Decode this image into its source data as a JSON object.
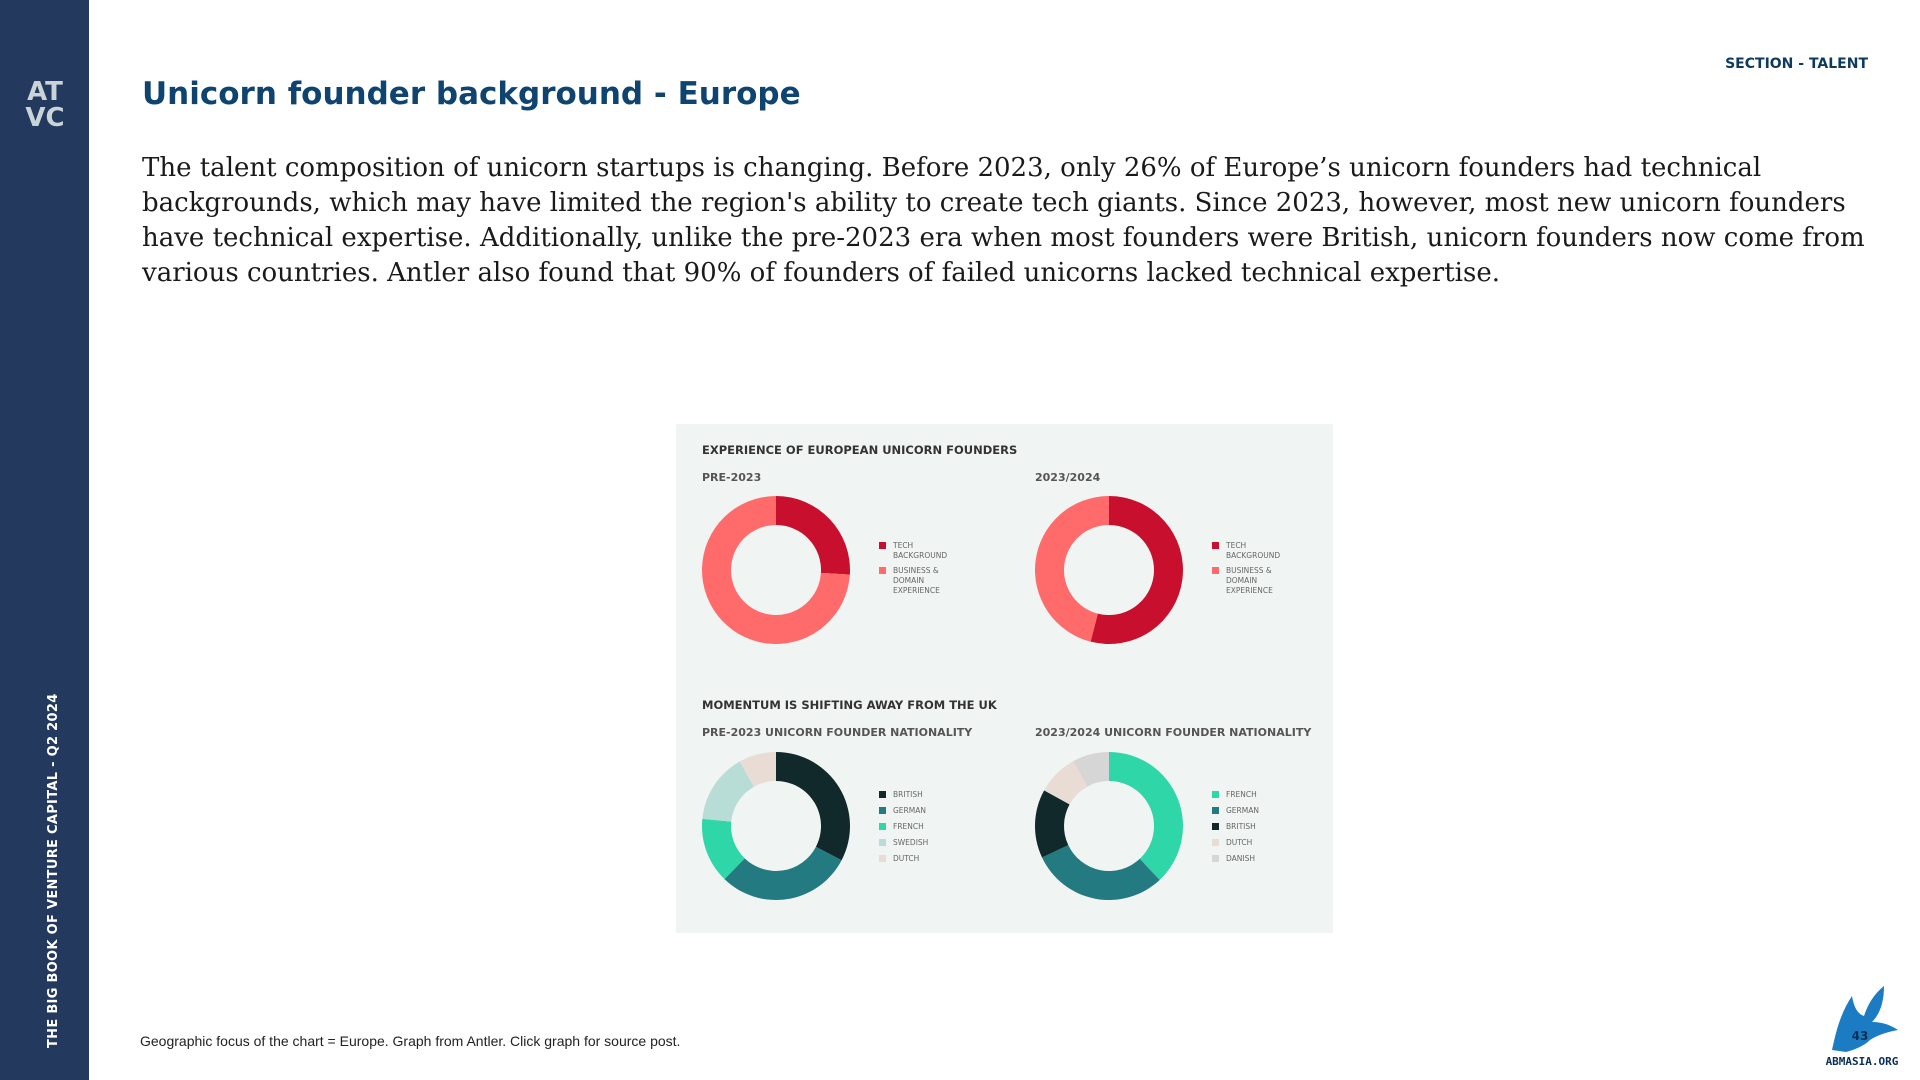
{
  "sidebar": {
    "logo_text": "ATVC",
    "vertical_title": "THE BIG BOOK OF VENTURE CAPITAL - Q2 2024"
  },
  "header": {
    "section": "SECTION - TALENT",
    "title": "Unicorn founder background - Europe"
  },
  "intro": "The talent composition of unicorn startups is changing. Before 2023, only 26% of Europe’s unicorn founders had technical backgrounds, which may have limited the region's ability to create tech giants. Since 2023, however, most new unicorn founders have technical expertise. Additionally, unlike the pre-2023 era when most founders were British, unicorn founders now come from various countries. Antler also found that 90% of founders of failed unicorns lacked technical expertise.",
  "footnote": "Geographic focus of the chart = Europe. Graph from Antler. Click graph for source post.",
  "watermark": "ABMASIA.ORG",
  "colors": {
    "sidebar": "#233a5e",
    "title": "#0f4471",
    "chart_bg": "#f0f5f3"
  },
  "chart_data": [
    {
      "type": "pie",
      "group_title": "EXPERIENCE OF EUROPEAN UNICORN FOUNDERS",
      "title": "PRE-2023",
      "slices": [
        {
          "label": "TECH BACKGROUND",
          "value": 26,
          "color": "#c8102e"
        },
        {
          "label": "BUSINESS & DOMAIN EXPERIENCE",
          "value": 74,
          "color": "#ff6b6b"
        }
      ]
    },
    {
      "type": "pie",
      "group_title": "",
      "title": "2023/2024",
      "slices": [
        {
          "label": "TECH BACKGROUND",
          "value": 54,
          "color": "#c8102e"
        },
        {
          "label": "BUSINESS & DOMAIN EXPERIENCE",
          "value": 46,
          "color": "#ff6b6b"
        }
      ]
    },
    {
      "type": "pie",
      "group_title": "MOMENTUM IS SHIFTING AWAY FROM THE UK",
      "title": "PRE-2023 UNICORN FOUNDER NATIONALITY",
      "slices": [
        {
          "label": "BRITISH",
          "value": 32,
          "color": "#12292b"
        },
        {
          "label": "GERMAN",
          "value": 29,
          "color": "#237a80"
        },
        {
          "label": "FRENCH",
          "value": 14,
          "color": "#2ed6a8"
        },
        {
          "label": "SWEDISH",
          "value": 15,
          "color": "#b7ddd6"
        },
        {
          "label": "DUTCH",
          "value": 8,
          "color": "#e8dcd5"
        }
      ]
    },
    {
      "type": "pie",
      "group_title": "",
      "title": "2023/2024 UNICORN FOUNDER NATIONALITY",
      "slices": [
        {
          "label": "FRENCH",
          "value": 38,
          "color": "#2ed6a8"
        },
        {
          "label": "GERMAN",
          "value": 30,
          "color": "#237a80"
        },
        {
          "label": "BRITISH",
          "value": 15,
          "color": "#12292b"
        },
        {
          "label": "DUTCH",
          "value": 9,
          "color": "#e8dcd5"
        },
        {
          "label": "DANISH",
          "value": 8,
          "color": "#d6d6d6"
        }
      ]
    }
  ]
}
